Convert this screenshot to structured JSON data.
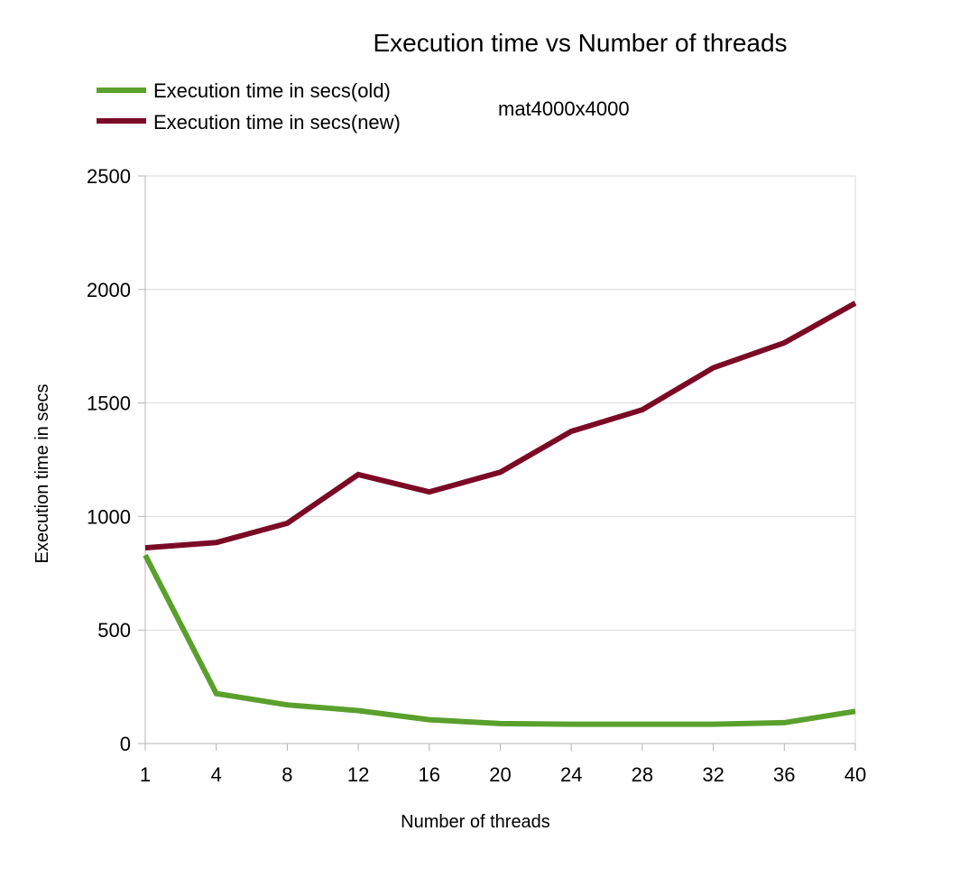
{
  "chart_data": {
    "type": "line",
    "title": "Execution time vs Number of threads",
    "annotation": "mat4000x4000",
    "xlabel": "Number of threads",
    "ylabel": "Execution time in secs",
    "categories": [
      "1",
      "4",
      "8",
      "12",
      "16",
      "20",
      "24",
      "28",
      "32",
      "36",
      "40"
    ],
    "ylim": [
      0,
      2500
    ],
    "yticks": [
      0,
      500,
      1000,
      1500,
      2000,
      2500
    ],
    "grid": true,
    "legend_position": "top-left",
    "series": [
      {
        "name": "Execution time in secs(old)",
        "color": "#5aa02c",
        "values": [
          830,
          220,
          170,
          145,
          105,
          88,
          85,
          85,
          85,
          92,
          142
        ]
      },
      {
        "name": "Execution time in secs(new)",
        "color": "#7b0a26",
        "values": [
          862,
          885,
          970,
          1185,
          1108,
          1195,
          1375,
          1470,
          1655,
          1765,
          1940
        ]
      }
    ]
  }
}
